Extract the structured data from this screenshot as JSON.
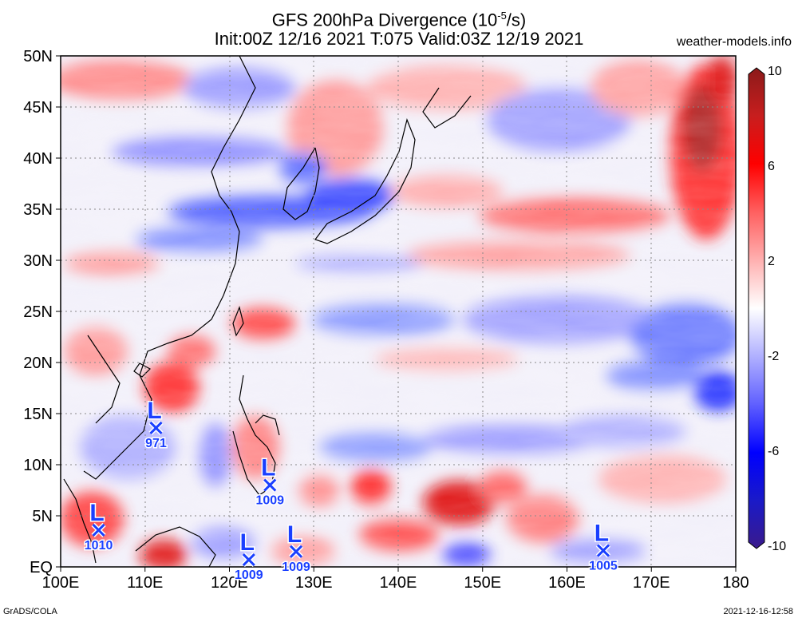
{
  "header": {
    "title_line1": "GFS 200hPa Divergence (10",
    "title_sup": "-5",
    "title_unit_end": "/s)",
    "title_line2": "Init:00Z 12/16 2021 T:075 Valid:03Z 12/19 2021",
    "brand": "weather-models.info"
  },
  "footer": {
    "left": "GrADS/COLA",
    "right": "2021-12-16-12:58"
  },
  "map": {
    "lon_range": [
      100,
      180
    ],
    "lat_range": [
      0,
      50
    ],
    "lon_labels": [
      "100E",
      "110E",
      "120E",
      "130E",
      "140E",
      "150E",
      "160E",
      "170E",
      "180"
    ],
    "lat_labels": [
      "EQ",
      "5N",
      "10N",
      "15N",
      "20N",
      "25N",
      "30N",
      "35N",
      "40N",
      "45N",
      "50N"
    ],
    "colorbar": {
      "labels": [
        "10",
        "6",
        "2",
        "-2",
        "-6",
        "-10"
      ],
      "colors": [
        "#8b1a1a",
        "#c81e1e",
        "#ff0000",
        "#ff6060",
        "#ffb0b0",
        "#ffffff",
        "#b0b0ff",
        "#6060ff",
        "#0000ff",
        "#1a1ac8",
        "#3a1a8b"
      ]
    },
    "lows": [
      {
        "lon": 111.3,
        "lat": 13.6,
        "value": "971"
      },
      {
        "lon": 124.8,
        "lat": 8.0,
        "value": "1009"
      },
      {
        "lon": 104.5,
        "lat": 3.6,
        "value": "1010"
      },
      {
        "lon": 122.3,
        "lat": 0.7,
        "value": "1009"
      },
      {
        "lon": 127.9,
        "lat": 1.5,
        "value": "1009"
      },
      {
        "lon": 164.3,
        "lat": 1.6,
        "value": "1005"
      }
    ]
  }
}
